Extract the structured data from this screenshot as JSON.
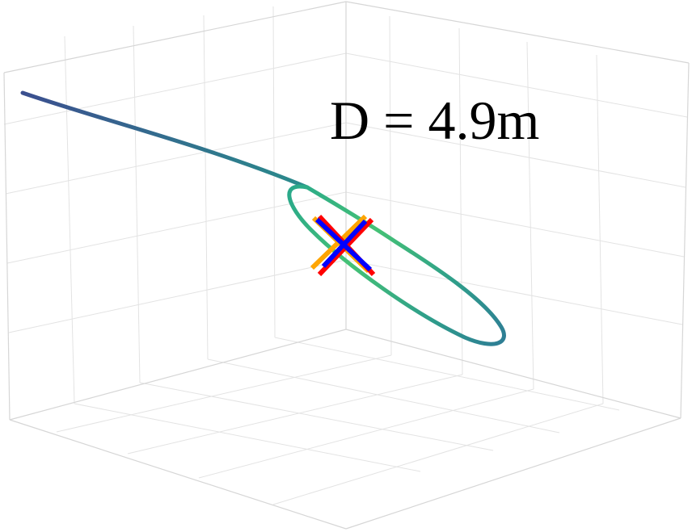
{
  "chart_data": {
    "type": "line3d",
    "annotation": "D = 4.9m",
    "grid": true,
    "colors": {
      "trajectory_start": "#3b4f8f",
      "trajectory_mid": "#2a8c8c",
      "trajectory_loop": "#3fc07a",
      "marker_orange": "#ffa500",
      "marker_red": "#ff0000",
      "marker_blue": "#0000ff"
    }
  }
}
